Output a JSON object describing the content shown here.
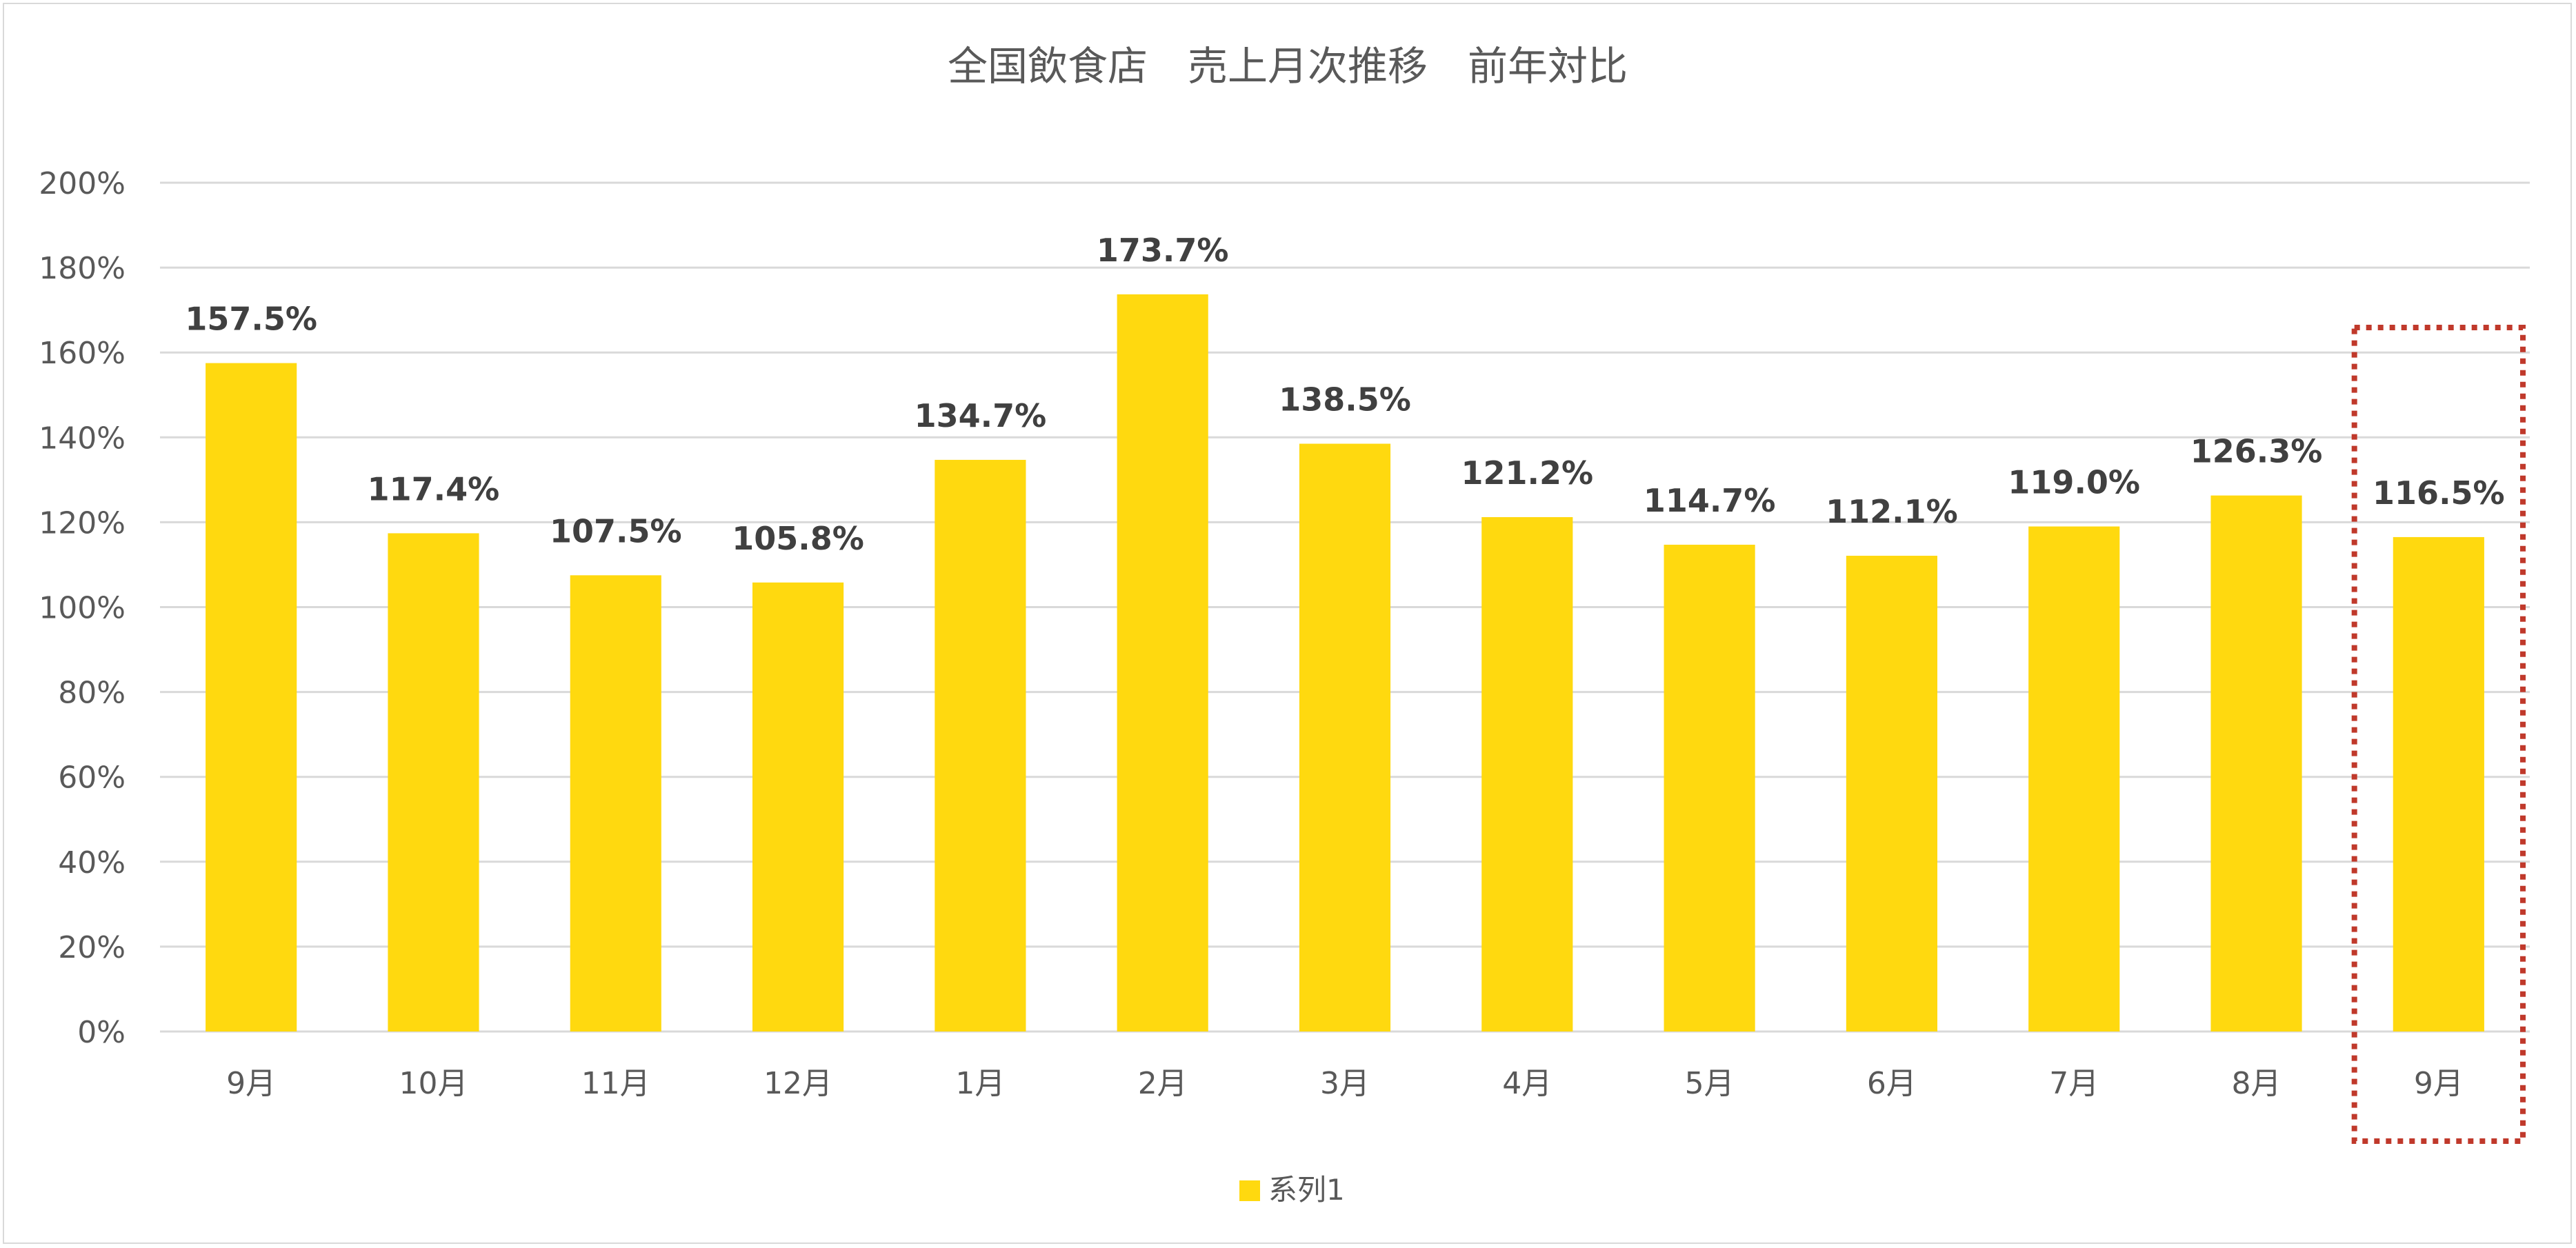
{
  "chart_data": {
    "type": "bar",
    "title": "全国飲食店　売上月次推移　前年対比",
    "categories": [
      "9月",
      "10月",
      "11月",
      "12月",
      "1月",
      "2月",
      "3月",
      "4月",
      "5月",
      "6月",
      "7月",
      "8月",
      "9月"
    ],
    "series": [
      {
        "name": "系列1",
        "values": [
          157.5,
          117.4,
          107.5,
          105.8,
          134.7,
          173.7,
          138.5,
          121.2,
          114.7,
          112.1,
          119.0,
          126.3,
          116.5
        ],
        "labels": [
          "157.5%",
          "117.4%",
          "107.5%",
          "105.8%",
          "134.7%",
          "173.7%",
          "138.5%",
          "121.2%",
          "114.7%",
          "112.1%",
          "119.0%",
          "126.3%",
          "116.5%"
        ],
        "color": "#FFD90F"
      }
    ],
    "ylim": [
      0,
      200
    ],
    "yticks": [
      "0%",
      "20%",
      "40%",
      "60%",
      "80%",
      "100%",
      "120%",
      "140%",
      "160%",
      "180%",
      "200%"
    ],
    "grid": true,
    "legend": "bottom",
    "highlight": {
      "category_index": 12,
      "style": "dotted-box",
      "color": "#C0392B"
    },
    "gridline_color": "#d9d9d9",
    "text_color": "#595959"
  }
}
